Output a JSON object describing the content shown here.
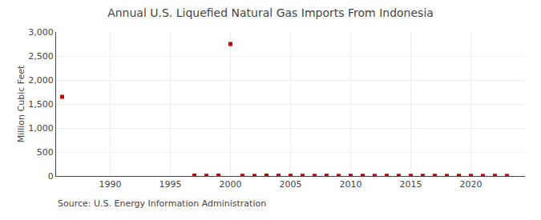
{
  "chart_data": {
    "type": "scatter",
    "title": "Annual U.S. Liquefied Natural Gas Imports From Indonesia",
    "ylabel": "Million Cubic Feet",
    "annotations": [
      "Source: U.S. Energy Information Administration"
    ],
    "x": [
      1986,
      1997,
      1998,
      1999,
      2000,
      2001,
      2002,
      2003,
      2004,
      2005,
      2006,
      2007,
      2008,
      2009,
      2010,
      2011,
      2012,
      2013,
      2014,
      2015,
      2016,
      2017,
      2018,
      2019,
      2020,
      2021,
      2022,
      2023
    ],
    "values": [
      1650,
      10,
      5,
      8,
      2750,
      5,
      3,
      8,
      6,
      4,
      5,
      4,
      7,
      3,
      5,
      4,
      3,
      5,
      4,
      3,
      4,
      5,
      3,
      4,
      3,
      2,
      4,
      3
    ],
    "color": "#CC0000",
    "marker": "square",
    "xlim": [
      1985.5,
      2024.5
    ],
    "xticks": [
      1990,
      1995,
      2000,
      2005,
      2010,
      2015,
      2020
    ],
    "ylim": [
      0,
      3000
    ],
    "yticks": [
      0,
      500,
      {
        "value": 1000,
        "label": "1,000"
      },
      {
        "value": 1500,
        "label": "1,500"
      },
      {
        "value": 2000,
        "label": "2,000"
      },
      {
        "value": 2500,
        "label": "2,500"
      },
      {
        "value": 3000,
        "label": "3,000"
      }
    ],
    "grid": true
  }
}
